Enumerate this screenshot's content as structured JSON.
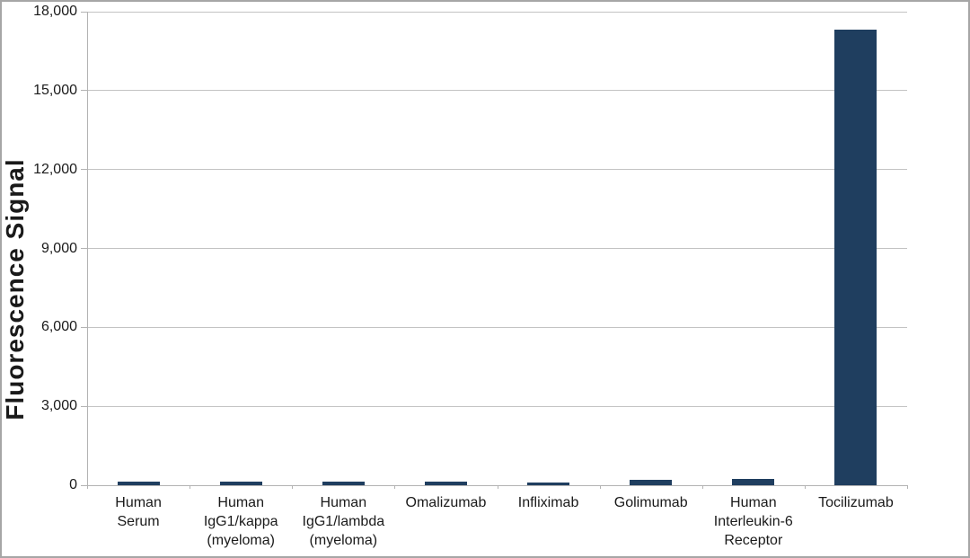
{
  "chart_data": {
    "type": "bar",
    "title": "",
    "ylabel": "Fluorescence Signal",
    "xlabel": "",
    "categories": [
      "Human\nSerum",
      "Human\nIgG1/kappa\n(myeloma)",
      "Human\nIgG1/lambda\n(myeloma)",
      "Omalizumab",
      "Infliximab",
      "Golimumab",
      "Human\nInterleukin-6\nReceptor",
      "Tocilizumab"
    ],
    "values": [
      130,
      150,
      120,
      130,
      110,
      220,
      250,
      17300
    ],
    "ylim": [
      0,
      18000
    ],
    "ytick_step": 3000,
    "yticks": [
      {
        "value": 0,
        "label": "0"
      },
      {
        "value": 3000,
        "label": "3,000"
      },
      {
        "value": 6000,
        "label": "6,000"
      },
      {
        "value": 9000,
        "label": "9,000"
      },
      {
        "value": 12000,
        "label": "12,000"
      },
      {
        "value": 15000,
        "label": "15,000"
      },
      {
        "value": 18000,
        "label": "18,000"
      }
    ],
    "grid": true,
    "legend": null,
    "colors": {
      "bar": "#1f3e5f",
      "gridline": "#c3c3c3",
      "axis": "#b3b3b3",
      "text": "#1a1a1a",
      "frame_border": "#a6a6a6",
      "background": "#ffffff"
    }
  }
}
